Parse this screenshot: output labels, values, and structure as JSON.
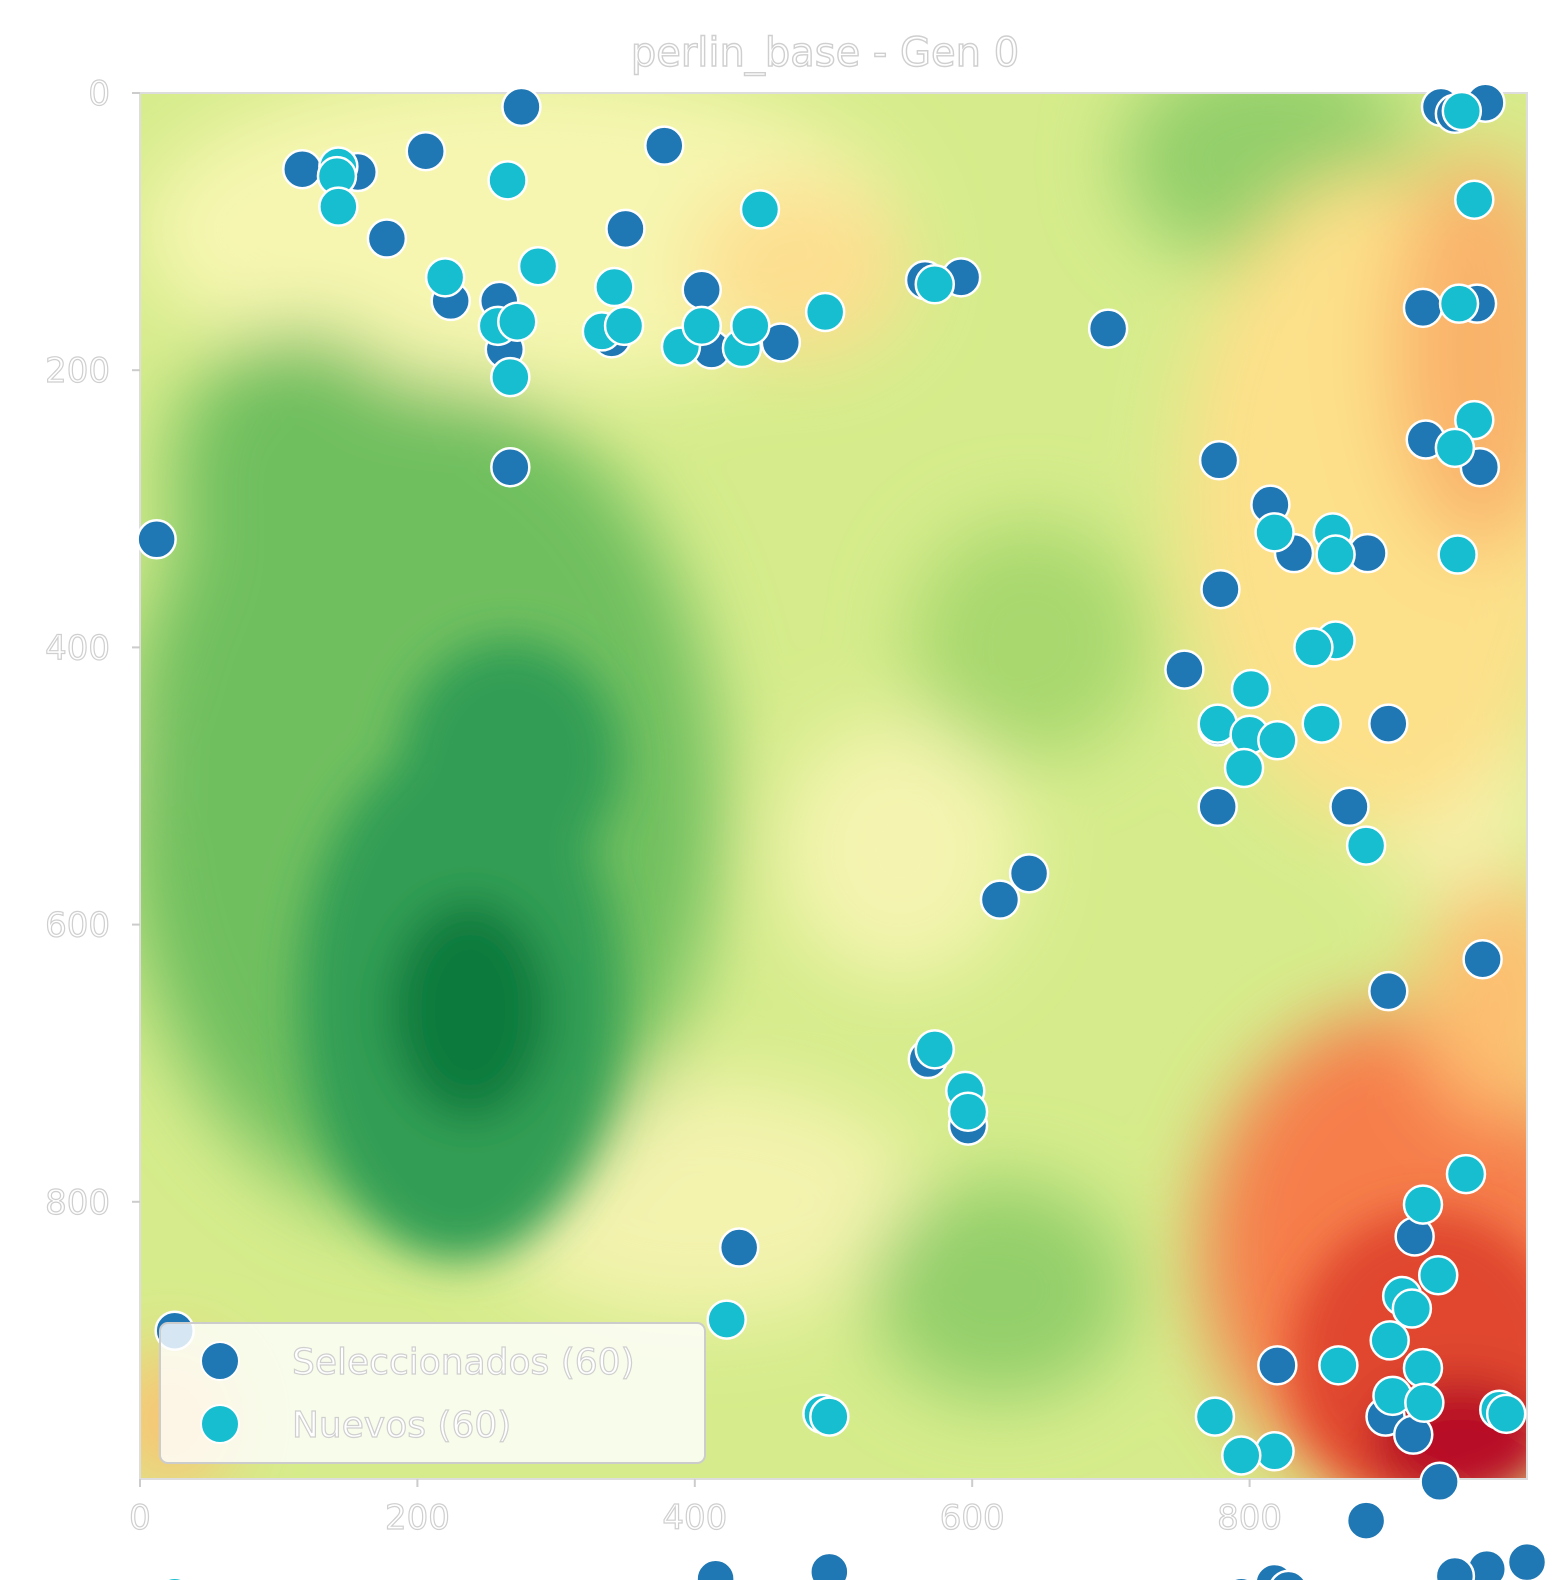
{
  "chart_data": {
    "type": "scatter",
    "title": "perlin_base - Gen 0",
    "xlabel": "",
    "ylabel": "",
    "xlim": [
      0,
      1000
    ],
    "ylim": [
      1000,
      0
    ],
    "y_inverted": true,
    "x_ticks": [
      "0",
      "200",
      "400",
      "600",
      "800"
    ],
    "y_ticks": [
      "0",
      "200",
      "400",
      "600",
      "800"
    ],
    "grid": false,
    "legend_position": "lower-left",
    "background": {
      "type": "contour",
      "colormap": "RdYlGn_r",
      "description": "perlin noise field"
    },
    "series": [
      {
        "name": "Seleccionados (60)",
        "color": "#1f77b4",
        "points": [
          [
            275,
            10
          ],
          [
            206,
            42
          ],
          [
            117,
            55
          ],
          [
            157,
            57
          ],
          [
            378,
            38
          ],
          [
            178,
            105
          ],
          [
            350,
            98
          ],
          [
            224,
            150
          ],
          [
            259,
            150
          ],
          [
            405,
            142
          ],
          [
            263,
            185
          ],
          [
            340,
            177
          ],
          [
            412,
            185
          ],
          [
            462,
            180
          ],
          [
            566,
            135
          ],
          [
            592,
            133
          ],
          [
            698,
            170
          ],
          [
            267,
            270
          ],
          [
            12,
            322
          ],
          [
            778,
            265
          ],
          [
            815,
            297
          ],
          [
            832,
            332
          ],
          [
            885,
            332
          ],
          [
            779,
            358
          ],
          [
            753,
            416
          ],
          [
            938,
            10
          ],
          [
            970,
            7
          ],
          [
            948,
            15
          ],
          [
            925,
            155
          ],
          [
            964,
            152
          ],
          [
            927,
            250
          ],
          [
            966,
            270
          ],
          [
            777,
            457
          ],
          [
            900,
            455
          ],
          [
            777,
            515
          ],
          [
            872,
            515
          ],
          [
            620,
            582
          ],
          [
            641,
            563
          ],
          [
            900,
            648
          ],
          [
            968,
            625
          ],
          [
            568,
            697
          ],
          [
            597,
            745
          ],
          [
            432,
            833
          ],
          [
            25,
            893
          ],
          [
            820,
            918
          ],
          [
            898,
            955
          ],
          [
            918,
            968
          ],
          [
            919,
            825
          ],
          [
            937,
            1002
          ],
          [
            884,
            1030
          ],
          [
            818,
            1075
          ],
          [
            794,
            1085
          ],
          [
            971,
            1065
          ],
          [
            1000,
            1060
          ],
          [
            20,
            1088
          ],
          [
            43,
            1088
          ],
          [
            415,
            1072
          ],
          [
            497,
            1067
          ],
          [
            948,
            1070
          ],
          [
            828,
            1080
          ]
        ]
      },
      {
        "name": "Nuevos (60)",
        "color": "#17becf",
        "points": [
          [
            143,
            53
          ],
          [
            142,
            60
          ],
          [
            143,
            82
          ],
          [
            265,
            63
          ],
          [
            220,
            133
          ],
          [
            287,
            125
          ],
          [
            342,
            140
          ],
          [
            447,
            84
          ],
          [
            494,
            158
          ],
          [
            573,
            138
          ],
          [
            258,
            168
          ],
          [
            272,
            165
          ],
          [
            267,
            205
          ],
          [
            333,
            172
          ],
          [
            349,
            168
          ],
          [
            390,
            183
          ],
          [
            405,
            168
          ],
          [
            434,
            184
          ],
          [
            440,
            168
          ],
          [
            953,
            13
          ],
          [
            962,
            77
          ],
          [
            951,
            152
          ],
          [
            962,
            236
          ],
          [
            948,
            256
          ],
          [
            950,
            333
          ],
          [
            818,
            317
          ],
          [
            860,
            317
          ],
          [
            862,
            333
          ],
          [
            862,
            395
          ],
          [
            846,
            400
          ],
          [
            801,
            430
          ],
          [
            777,
            455
          ],
          [
            800,
            463
          ],
          [
            820,
            467
          ],
          [
            852,
            455
          ],
          [
            796,
            487
          ],
          [
            884,
            543
          ],
          [
            573,
            690
          ],
          [
            595,
            720
          ],
          [
            597,
            735
          ],
          [
            956,
            780
          ],
          [
            925,
            802
          ],
          [
            936,
            853
          ],
          [
            910,
            868
          ],
          [
            917,
            877
          ],
          [
            901,
            900
          ],
          [
            925,
            920
          ],
          [
            864,
            918
          ],
          [
            903,
            940
          ],
          [
            926,
            945
          ],
          [
            980,
            950
          ],
          [
            985,
            953
          ],
          [
            775,
            955
          ],
          [
            818,
            980
          ],
          [
            794,
            983
          ],
          [
            423,
            885
          ],
          [
            492,
            953
          ],
          [
            497,
            955
          ],
          [
            25,
            1085
          ],
          [
            23,
            1090
          ]
        ]
      }
    ]
  }
}
